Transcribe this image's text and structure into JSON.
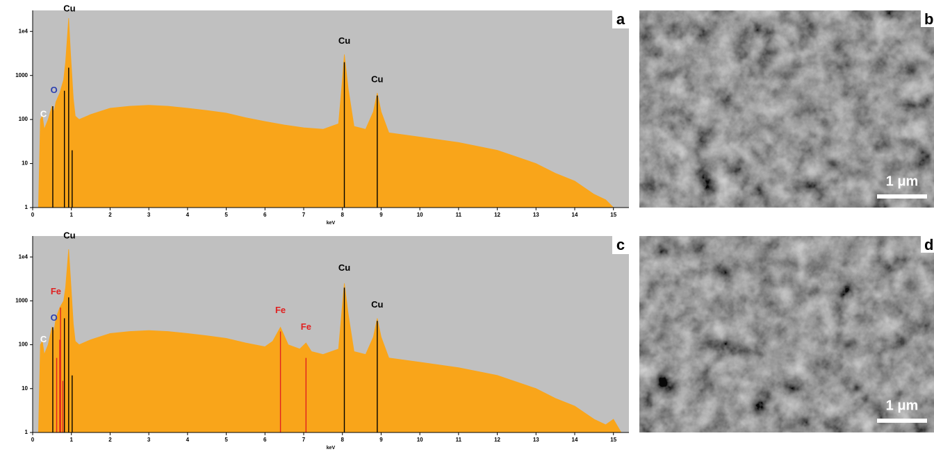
{
  "chart_data": [
    {
      "type": "area",
      "panel": "a",
      "xlabel": "keV",
      "log_y": true,
      "grid": false,
      "background": "#c0c0c0",
      "color": "#f9a51a",
      "xlim": [
        0,
        15.4
      ],
      "ylim": [
        1,
        30000
      ],
      "xticks": [
        0,
        1,
        2,
        3,
        4,
        5,
        6,
        7,
        8,
        9,
        10,
        11,
        12,
        13,
        14,
        15
      ],
      "yticks": [
        1,
        10,
        100,
        1000,
        {
          "value": 10000,
          "label": "1e4"
        }
      ],
      "x": [
        0.15,
        0.2,
        0.25,
        0.3,
        0.4,
        0.5,
        0.55,
        0.6,
        0.7,
        0.8,
        0.85,
        0.93,
        0.98,
        1.05,
        1.1,
        1.2,
        1.5,
        2,
        2.5,
        3,
        3.5,
        4,
        4.5,
        5,
        5.5,
        6,
        6.5,
        7,
        7.5,
        7.9,
        8.0,
        8.05,
        8.15,
        8.3,
        8.6,
        8.8,
        8.9,
        9.0,
        9.2,
        10,
        11,
        12,
        13,
        13.5,
        14,
        14.5,
        14.8,
        15
      ],
      "values": [
        1,
        100,
        120,
        60,
        100,
        200,
        150,
        250,
        400,
        800,
        2000,
        20000,
        3000,
        300,
        120,
        100,
        130,
        180,
        200,
        210,
        200,
        180,
        160,
        140,
        110,
        90,
        75,
        65,
        60,
        80,
        800,
        3000,
        500,
        70,
        60,
        150,
        400,
        150,
        50,
        40,
        30,
        20,
        10,
        6,
        4,
        2,
        1.5,
        1
      ],
      "lines": [
        {
          "x": 0.52,
          "y": 200,
          "color": "#000000"
        },
        {
          "x": 0.82,
          "y": 450,
          "color": "#000000"
        },
        {
          "x": 0.93,
          "y": 1500,
          "color": "#000000"
        },
        {
          "x": 1.02,
          "y": 20,
          "color": "#000000"
        },
        {
          "x": 8.05,
          "y": 2000,
          "color": "#000000"
        },
        {
          "x": 8.9,
          "y": 350,
          "color": "#000000"
        }
      ],
      "labels": [
        {
          "text": "C",
          "x": 0.28,
          "y": 130,
          "color": "#ffffff"
        },
        {
          "text": "O",
          "x": 0.55,
          "y": 450,
          "color": "#2b3fb0"
        },
        {
          "text": "Cu",
          "x": 0.95,
          "y": 32000,
          "color": "#000000"
        },
        {
          "text": "Cu",
          "x": 8.05,
          "y": 6000,
          "color": "#000000"
        },
        {
          "text": "Cu",
          "x": 8.9,
          "y": 800,
          "color": "#000000"
        }
      ]
    },
    {
      "type": "area",
      "panel": "c",
      "xlabel": "keV",
      "log_y": true,
      "grid": false,
      "background": "#c0c0c0",
      "color": "#f9a51a",
      "xlim": [
        0,
        15.4
      ],
      "ylim": [
        1,
        30000
      ],
      "xticks": [
        0,
        1,
        2,
        3,
        4,
        5,
        6,
        7,
        8,
        9,
        10,
        11,
        12,
        13,
        14,
        15
      ],
      "yticks": [
        1,
        10,
        100,
        1000,
        {
          "value": 10000,
          "label": "1e4"
        }
      ],
      "x": [
        0.15,
        0.2,
        0.25,
        0.3,
        0.4,
        0.5,
        0.55,
        0.6,
        0.7,
        0.8,
        0.85,
        0.93,
        0.98,
        1.05,
        1.1,
        1.2,
        1.5,
        2,
        2.5,
        3,
        3.5,
        4,
        4.5,
        5,
        5.5,
        6,
        6.2,
        6.4,
        6.6,
        6.9,
        7.06,
        7.2,
        7.5,
        7.9,
        8.0,
        8.05,
        8.15,
        8.3,
        8.6,
        8.8,
        8.9,
        9.0,
        9.2,
        10,
        11,
        12,
        13,
        13.5,
        14,
        14.5,
        14.8,
        15,
        15.2
      ],
      "values": [
        1,
        100,
        120,
        60,
        100,
        250,
        200,
        400,
        700,
        1000,
        2000,
        15000,
        3000,
        300,
        120,
        100,
        130,
        180,
        200,
        210,
        200,
        180,
        160,
        140,
        110,
        90,
        120,
        250,
        100,
        80,
        110,
        70,
        60,
        80,
        800,
        2500,
        500,
        70,
        60,
        150,
        400,
        150,
        50,
        40,
        30,
        20,
        10,
        6,
        4,
        2,
        1.5,
        2,
        1
      ],
      "lines": [
        {
          "x": 0.52,
          "y": 250,
          "color": "#000000"
        },
        {
          "x": 0.62,
          "y": 50,
          "color": "#e02020"
        },
        {
          "x": 0.7,
          "y": 130,
          "color": "#e02020"
        },
        {
          "x": 0.72,
          "y": 700,
          "color": "#e02020"
        },
        {
          "x": 0.78,
          "y": 15,
          "color": "#e02020"
        },
        {
          "x": 0.82,
          "y": 400,
          "color": "#000000"
        },
        {
          "x": 0.93,
          "y": 1200,
          "color": "#000000"
        },
        {
          "x": 1.02,
          "y": 20,
          "color": "#000000"
        },
        {
          "x": 6.4,
          "y": 200,
          "color": "#e02020"
        },
        {
          "x": 7.06,
          "y": 50,
          "color": "#e02020"
        },
        {
          "x": 8.05,
          "y": 2000,
          "color": "#000000"
        },
        {
          "x": 8.9,
          "y": 350,
          "color": "#000000"
        }
      ],
      "labels": [
        {
          "text": "C",
          "x": 0.28,
          "y": 130,
          "color": "#ffffff"
        },
        {
          "text": "O",
          "x": 0.55,
          "y": 400,
          "color": "#2b3fb0"
        },
        {
          "text": "Fe",
          "x": 0.6,
          "y": 1600,
          "color": "#e02020"
        },
        {
          "text": "Cu",
          "x": 0.95,
          "y": 30000,
          "color": "#000000"
        },
        {
          "text": "Fe",
          "x": 6.4,
          "y": 600,
          "color": "#e02020"
        },
        {
          "text": "Fe",
          "x": 7.06,
          "y": 250,
          "color": "#e02020"
        },
        {
          "text": "Cu",
          "x": 8.05,
          "y": 5500,
          "color": "#000000"
        },
        {
          "text": "Cu",
          "x": 8.9,
          "y": 800,
          "color": "#000000"
        }
      ]
    }
  ],
  "images": [
    {
      "panel": "b",
      "scale_label": "1 μm"
    },
    {
      "panel": "d",
      "scale_label": "1 μm"
    }
  ]
}
